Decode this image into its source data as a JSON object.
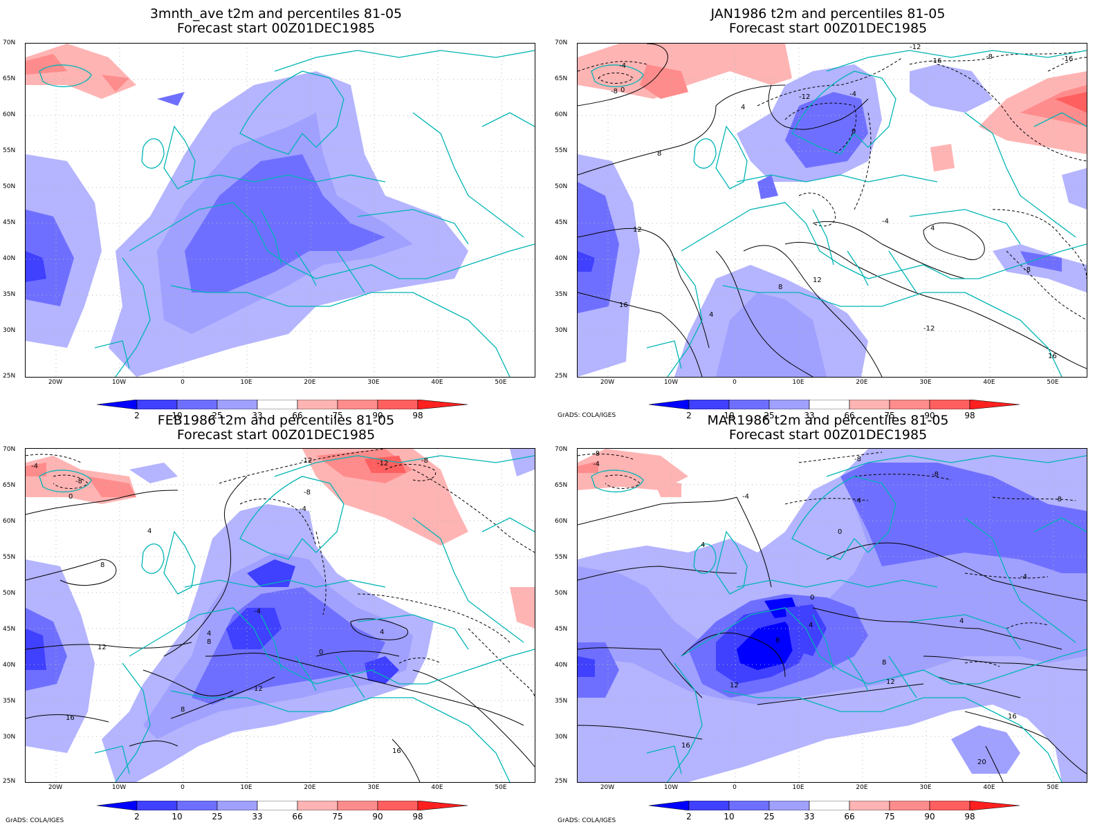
{
  "panels": [
    {
      "title_line1": "3mnth_ave t2m and percentiles 81-05",
      "title_line2": "Forecast start 00Z01DEC1985",
      "credit": ""
    },
    {
      "title_line1": "JAN1986 t2m and percentiles 81-05",
      "title_line2": "Forecast start 00Z01DEC1985",
      "credit": "GrADS: COLA/IGES"
    },
    {
      "title_line1": "FEB1986 t2m and percentiles 81-05",
      "title_line2": "Forecast start 00Z01DEC1985",
      "credit": "GrADS: COLA/IGES"
    },
    {
      "title_line1": "MAR1986 t2m and percentiles 81-05",
      "title_line2": "Forecast start 00Z01DEC1985",
      "credit": "GrADS: COLA/IGES"
    }
  ],
  "lat_labels": [
    "70N",
    "65N",
    "60N",
    "55N",
    "50N",
    "45N",
    "40N",
    "35N",
    "30N",
    "25N"
  ],
  "lon_labels": [
    "20W",
    "10W",
    "0",
    "10E",
    "20E",
    "30E",
    "40E",
    "50E"
  ],
  "colorbar": {
    "labels": [
      "2",
      "10",
      "25",
      "33",
      "66",
      "75",
      "90",
      "98"
    ],
    "colors": [
      "#0000ff",
      "#4040ff",
      "#6f6fff",
      "#a0a0ff",
      "#b4b4ff",
      "#ffffff",
      "#ffb4b4",
      "#ff8c8c",
      "#ff5f5f",
      "#ff2020"
    ]
  },
  "colors": {
    "coast": "#00b4b4",
    "contour": "#000000"
  },
  "contour_labels": {
    "p0": [],
    "p1": [
      "-12",
      "-16",
      "-8",
      "-4",
      "0",
      "4",
      "8",
      "12",
      "16",
      "-8",
      "-4",
      "0",
      "4",
      "8",
      "12",
      "16",
      "-12",
      "-16",
      "-4",
      "-8",
      "-12",
      "4"
    ],
    "p2": [
      "-4",
      "-8",
      "0",
      "4",
      "-12",
      "-8",
      "-4",
      "4",
      "8",
      "12",
      "16",
      "8",
      "-4",
      "0",
      "4",
      "8",
      "12",
      "16",
      "-12",
      "-8"
    ],
    "p3": [
      "-8",
      "-4",
      "-8",
      "-4",
      "0",
      "4",
      "8",
      "12",
      "16",
      "20",
      "-4",
      "-8",
      "4",
      "0",
      "4",
      "8",
      "12",
      "16",
      "-4",
      "-8"
    ]
  }
}
